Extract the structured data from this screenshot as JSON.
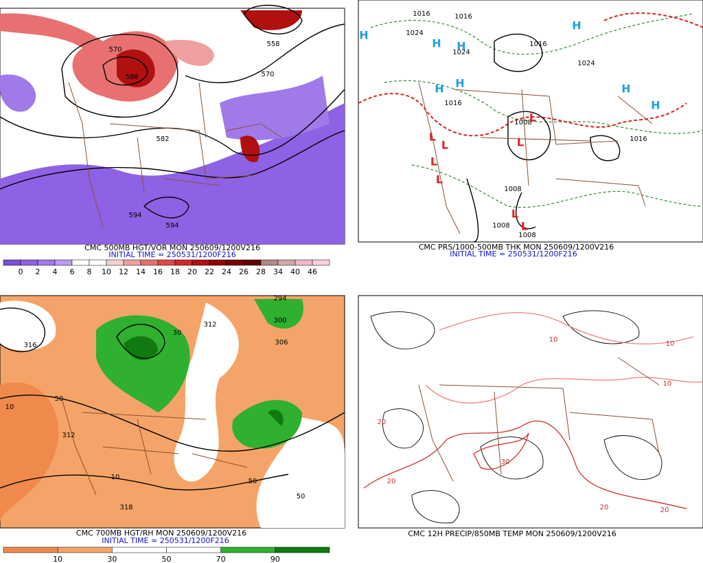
{
  "panels": [
    {
      "caption": "CMC 500MB HGT/VOR MON 250609/1200V216",
      "initial_time": "INITIAL TIME = 250531/1200F216",
      "colorbar": {
        "labels": [
          "0",
          "2",
          "4",
          "6",
          "8",
          "10",
          "12",
          "14",
          "16",
          "18",
          "20",
          "22",
          "24",
          "26",
          "28",
          "34",
          "40",
          "46"
        ],
        "colors": [
          "#7a4fd8",
          "#8e62e4",
          "#a07ae8",
          "#b89cee",
          "#ffffff",
          "#ffffff",
          "#f6d0d0",
          "#f0a0a0",
          "#e87070",
          "#e04848",
          "#d02828",
          "#b01010",
          "#900000",
          "#780000",
          "#600000",
          "#b08888",
          "#d0a8a8",
          "#f0b8c8",
          "#f8d0d8"
        ]
      },
      "contour_labels": [
        "570",
        "588",
        "558",
        "570",
        "582",
        "594",
        "594"
      ]
    },
    {
      "caption": "CMC PRS/1000-500MB THK MON 250609/1200V216",
      "initial_time": "INITIAL TIME = 250531/1200F216",
      "contour_labels": [
        "1016",
        "1024",
        "1016",
        "1024",
        "1016",
        "1024",
        "1016",
        "1008",
        "1008",
        "1008",
        "1008",
        "1016"
      ],
      "highs": [
        "H",
        "H",
        "H",
        "H",
        "H",
        "H",
        "H",
        "H"
      ],
      "lows": [
        "L",
        "L",
        "L",
        "L",
        "L",
        "L",
        "L",
        "L"
      ]
    },
    {
      "caption": "CMC 700MB HGT/RH MON 250609/1200V216",
      "initial_time": "INITIAL TIME = 250531/1200F216",
      "colorbar": {
        "labels": [
          "10",
          "30",
          "50",
          "70",
          "90"
        ],
        "colors": [
          "#f08a4c",
          "#f4a468",
          "#ffffff",
          "#ffffff",
          "#2fb02f",
          "#107a10"
        ]
      },
      "contour_labels": [
        "316",
        "312",
        "10",
        "50",
        "294",
        "300",
        "306",
        "312",
        "318",
        "30",
        "50",
        "10",
        "50"
      ]
    },
    {
      "caption": "CMC 12H PRECIP/850MB TEMP MON 250609/1200V216",
      "contour_labels": [
        "10",
        "10",
        "20",
        "20",
        "30",
        "20",
        "10",
        "20"
      ]
    }
  ]
}
